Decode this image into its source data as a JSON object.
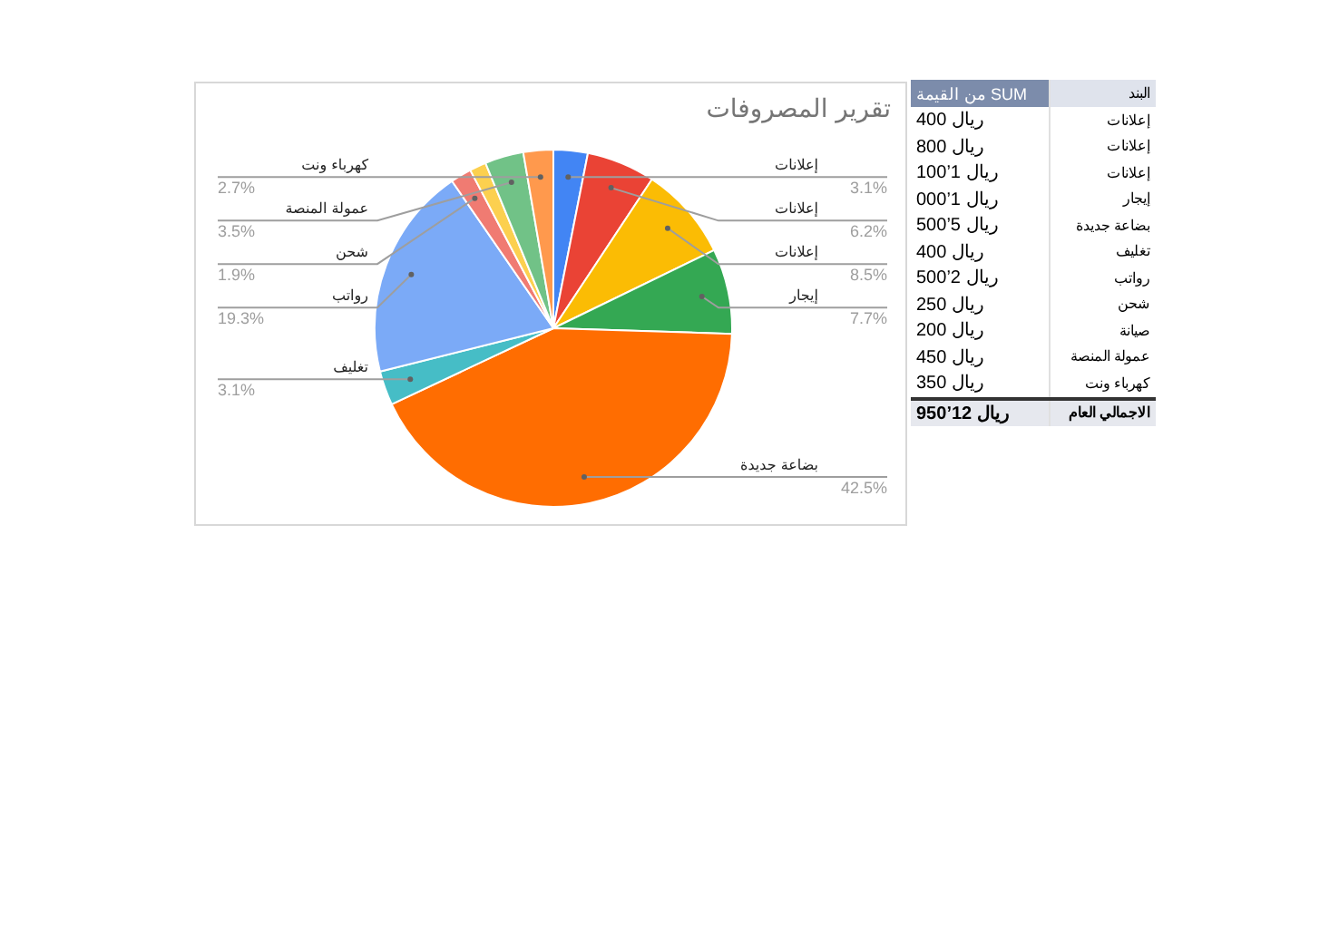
{
  "chart_data": {
    "type": "pie",
    "title": "تقرير المصروفات",
    "categories": [
      "إعلانات",
      "إعلانات",
      "إعلانات",
      "إيجار",
      "بضاعة جديدة",
      "تغليف",
      "رواتب",
      "شحن",
      null,
      "عمولة المنصة",
      "كهرباء ونت"
    ],
    "values": [
      3.1,
      6.2,
      8.5,
      7.7,
      42.5,
      3.1,
      19.3,
      1.9,
      1.5,
      3.5,
      2.7
    ],
    "colors": [
      "#4285f4",
      "#ea4335",
      "#fbbc04",
      "#34a853",
      "#ff6d01",
      "#46bdc6",
      "#7baaf7",
      "#f07b72",
      "#fcd04f",
      "#71c287",
      "#ff994d"
    ],
    "value_labels": [
      "3.1%",
      "6.2%",
      "8.5%",
      "7.7%",
      "42.5%",
      "3.1%",
      "19.3%",
      "1.9%",
      null,
      "3.5%",
      "2.7%"
    ],
    "legend": false,
    "annotations": [
      "البند",
      "SUM من القيمة",
      "إعلانات",
      "ريال 400",
      "إعلانات",
      "ريال 800",
      "إعلانات",
      "ريال 1’100",
      "إيجار",
      "ريال 1’000",
      "بضاعة جديدة",
      "ريال 5’500",
      "تغليف",
      "ريال 400",
      "رواتب",
      "ريال 2’500",
      "شحن",
      "ريال 250",
      "صيانة",
      "ريال 200",
      "عمولة المنصة",
      "ريال 450",
      "كهرباء ونت",
      "ريال 350",
      "الاجمالي العام",
      "ريال 12’950"
    ]
  }
}
